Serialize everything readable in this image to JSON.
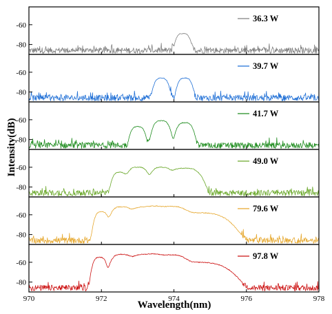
{
  "chart_data": {
    "type": "line",
    "layout": "stacked-panels",
    "xlabel": "Wavelength(nm)",
    "ylabel": "Intensity(dB)",
    "xlim": [
      970,
      978
    ],
    "x_ticks": [
      970,
      972,
      974,
      976,
      978
    ],
    "x_tick_labels": [
      "970",
      "972",
      "974",
      "976",
      "978"
    ],
    "ylim": [
      -90,
      -42
    ],
    "y_ticks": [
      -80,
      -60
    ],
    "y_tick_labels": [
      "-80",
      "-60"
    ],
    "grid": false,
    "legend_placement": "top-right of each panel",
    "noise_floor_db": -86,
    "panels": [
      {
        "name": "36.3 W",
        "color": "#808080",
        "peaks": [
          {
            "center": 974.25,
            "width": 0.14,
            "level": -69
          }
        ]
      },
      {
        "name": "39.7 W",
        "color": "#1f6fd6",
        "peaks": [
          {
            "center": 973.65,
            "width": 0.14,
            "level": -66
          },
          {
            "center": 974.3,
            "width": 0.14,
            "level": -66
          }
        ]
      },
      {
        "name": "41.7 W",
        "color": "#1e8c1e",
        "peaks": [
          {
            "center": 973.0,
            "width": 0.14,
            "level": -67
          },
          {
            "center": 973.65,
            "width": 0.16,
            "level": -61
          },
          {
            "center": 974.3,
            "width": 0.16,
            "level": -63
          }
        ]
      },
      {
        "name": "49.0 W",
        "color": "#6aa82a",
        "peaks": [
          {
            "center": 972.5,
            "width": 0.14,
            "level": -65
          },
          {
            "center": 973.0,
            "width": 0.2,
            "level": -60
          },
          {
            "center": 973.65,
            "width": 0.2,
            "level": -60
          },
          {
            "center": 974.3,
            "width": 0.3,
            "level": -61
          }
        ]
      },
      {
        "name": "79.6 W",
        "color": "#e6a82f",
        "peaks": [
          {
            "center": 972.0,
            "width": 0.13,
            "level": -57
          },
          {
            "center": 972.55,
            "width": 0.2,
            "level": -52
          },
          {
            "center": 973.2,
            "width": 0.3,
            "level": -52
          },
          {
            "center": 973.85,
            "width": 0.35,
            "level": -52
          },
          {
            "center": 974.6,
            "width": 0.6,
            "level": -58
          }
        ]
      },
      {
        "name": "97.8 W",
        "color": "#cc1111",
        "peaks": [
          {
            "center": 971.95,
            "width": 0.13,
            "level": -55
          },
          {
            "center": 972.55,
            "width": 0.2,
            "level": -52
          },
          {
            "center": 973.2,
            "width": 0.3,
            "level": -52
          },
          {
            "center": 973.85,
            "width": 0.35,
            "level": -53
          },
          {
            "center": 974.55,
            "width": 0.65,
            "level": -60
          }
        ]
      }
    ]
  }
}
